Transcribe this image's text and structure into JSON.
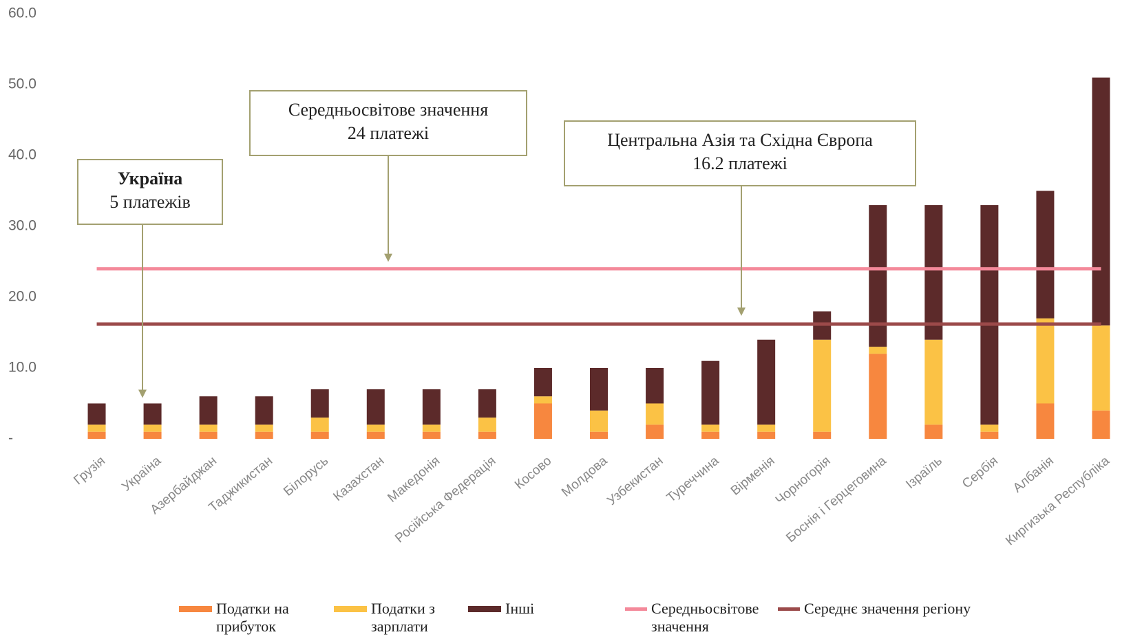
{
  "chart_data": {
    "type": "stacked_bar",
    "categories": [
      "Грузія",
      "Україна",
      "Азербайджан",
      "Таджикистан",
      "Білорусь",
      "Казахстан",
      "Македонія",
      "Російська Федерація",
      "Косово",
      "Молдова",
      "Узбекистан",
      "Туреччина",
      "Вірменія",
      "Чорногорія",
      "Боснія і Герцеговина",
      "Ізраїль",
      "Сербія",
      "Албанія",
      "Киргизька Республіка"
    ],
    "series": [
      {
        "name": "Податки на прибуток",
        "color": "#f7873f",
        "values": [
          1,
          1,
          1,
          1,
          1,
          1,
          1,
          1,
          5,
          1,
          2,
          1,
          1,
          1,
          12,
          2,
          1,
          5,
          4
        ]
      },
      {
        "name": "Податки з зарплати",
        "color": "#fbc245",
        "values": [
          1,
          1,
          1,
          1,
          2,
          1,
          1,
          2,
          1,
          3,
          3,
          1,
          1,
          13,
          1,
          12,
          1,
          12,
          12
        ]
      },
      {
        "name": "Інші",
        "color": "#5c2a2a",
        "values": [
          3,
          3,
          4,
          4,
          4,
          5,
          5,
          4,
          4,
          6,
          5,
          9,
          12,
          4,
          20,
          19,
          31,
          18,
          35
        ]
      }
    ],
    "reference_lines": [
      {
        "name": "Середньосвітове значення",
        "color": "#f4899a",
        "value": 24
      },
      {
        "name": "Середнє значення регіону",
        "color": "#9b4a4a",
        "value": 16.2
      }
    ],
    "annotations": [
      {
        "title": "Україна",
        "text": "5 платежів"
      },
      {
        "title": "Середньосвітове значення",
        "text": "24 платежі"
      },
      {
        "title": "Центральна Азія та Східна Європа",
        "text": "16.2 платежі"
      }
    ],
    "ylim": [
      0,
      60
    ],
    "yticks": [
      {
        "value": 0,
        "label": "-"
      },
      {
        "value": 10,
        "label": "10.0"
      },
      {
        "value": 20,
        "label": "20.0"
      },
      {
        "value": 30,
        "label": "30.0"
      },
      {
        "value": 40,
        "label": "40.0"
      },
      {
        "value": 50,
        "label": "50.0"
      },
      {
        "value": 60,
        "label": "60.0"
      }
    ],
    "grid": false
  }
}
